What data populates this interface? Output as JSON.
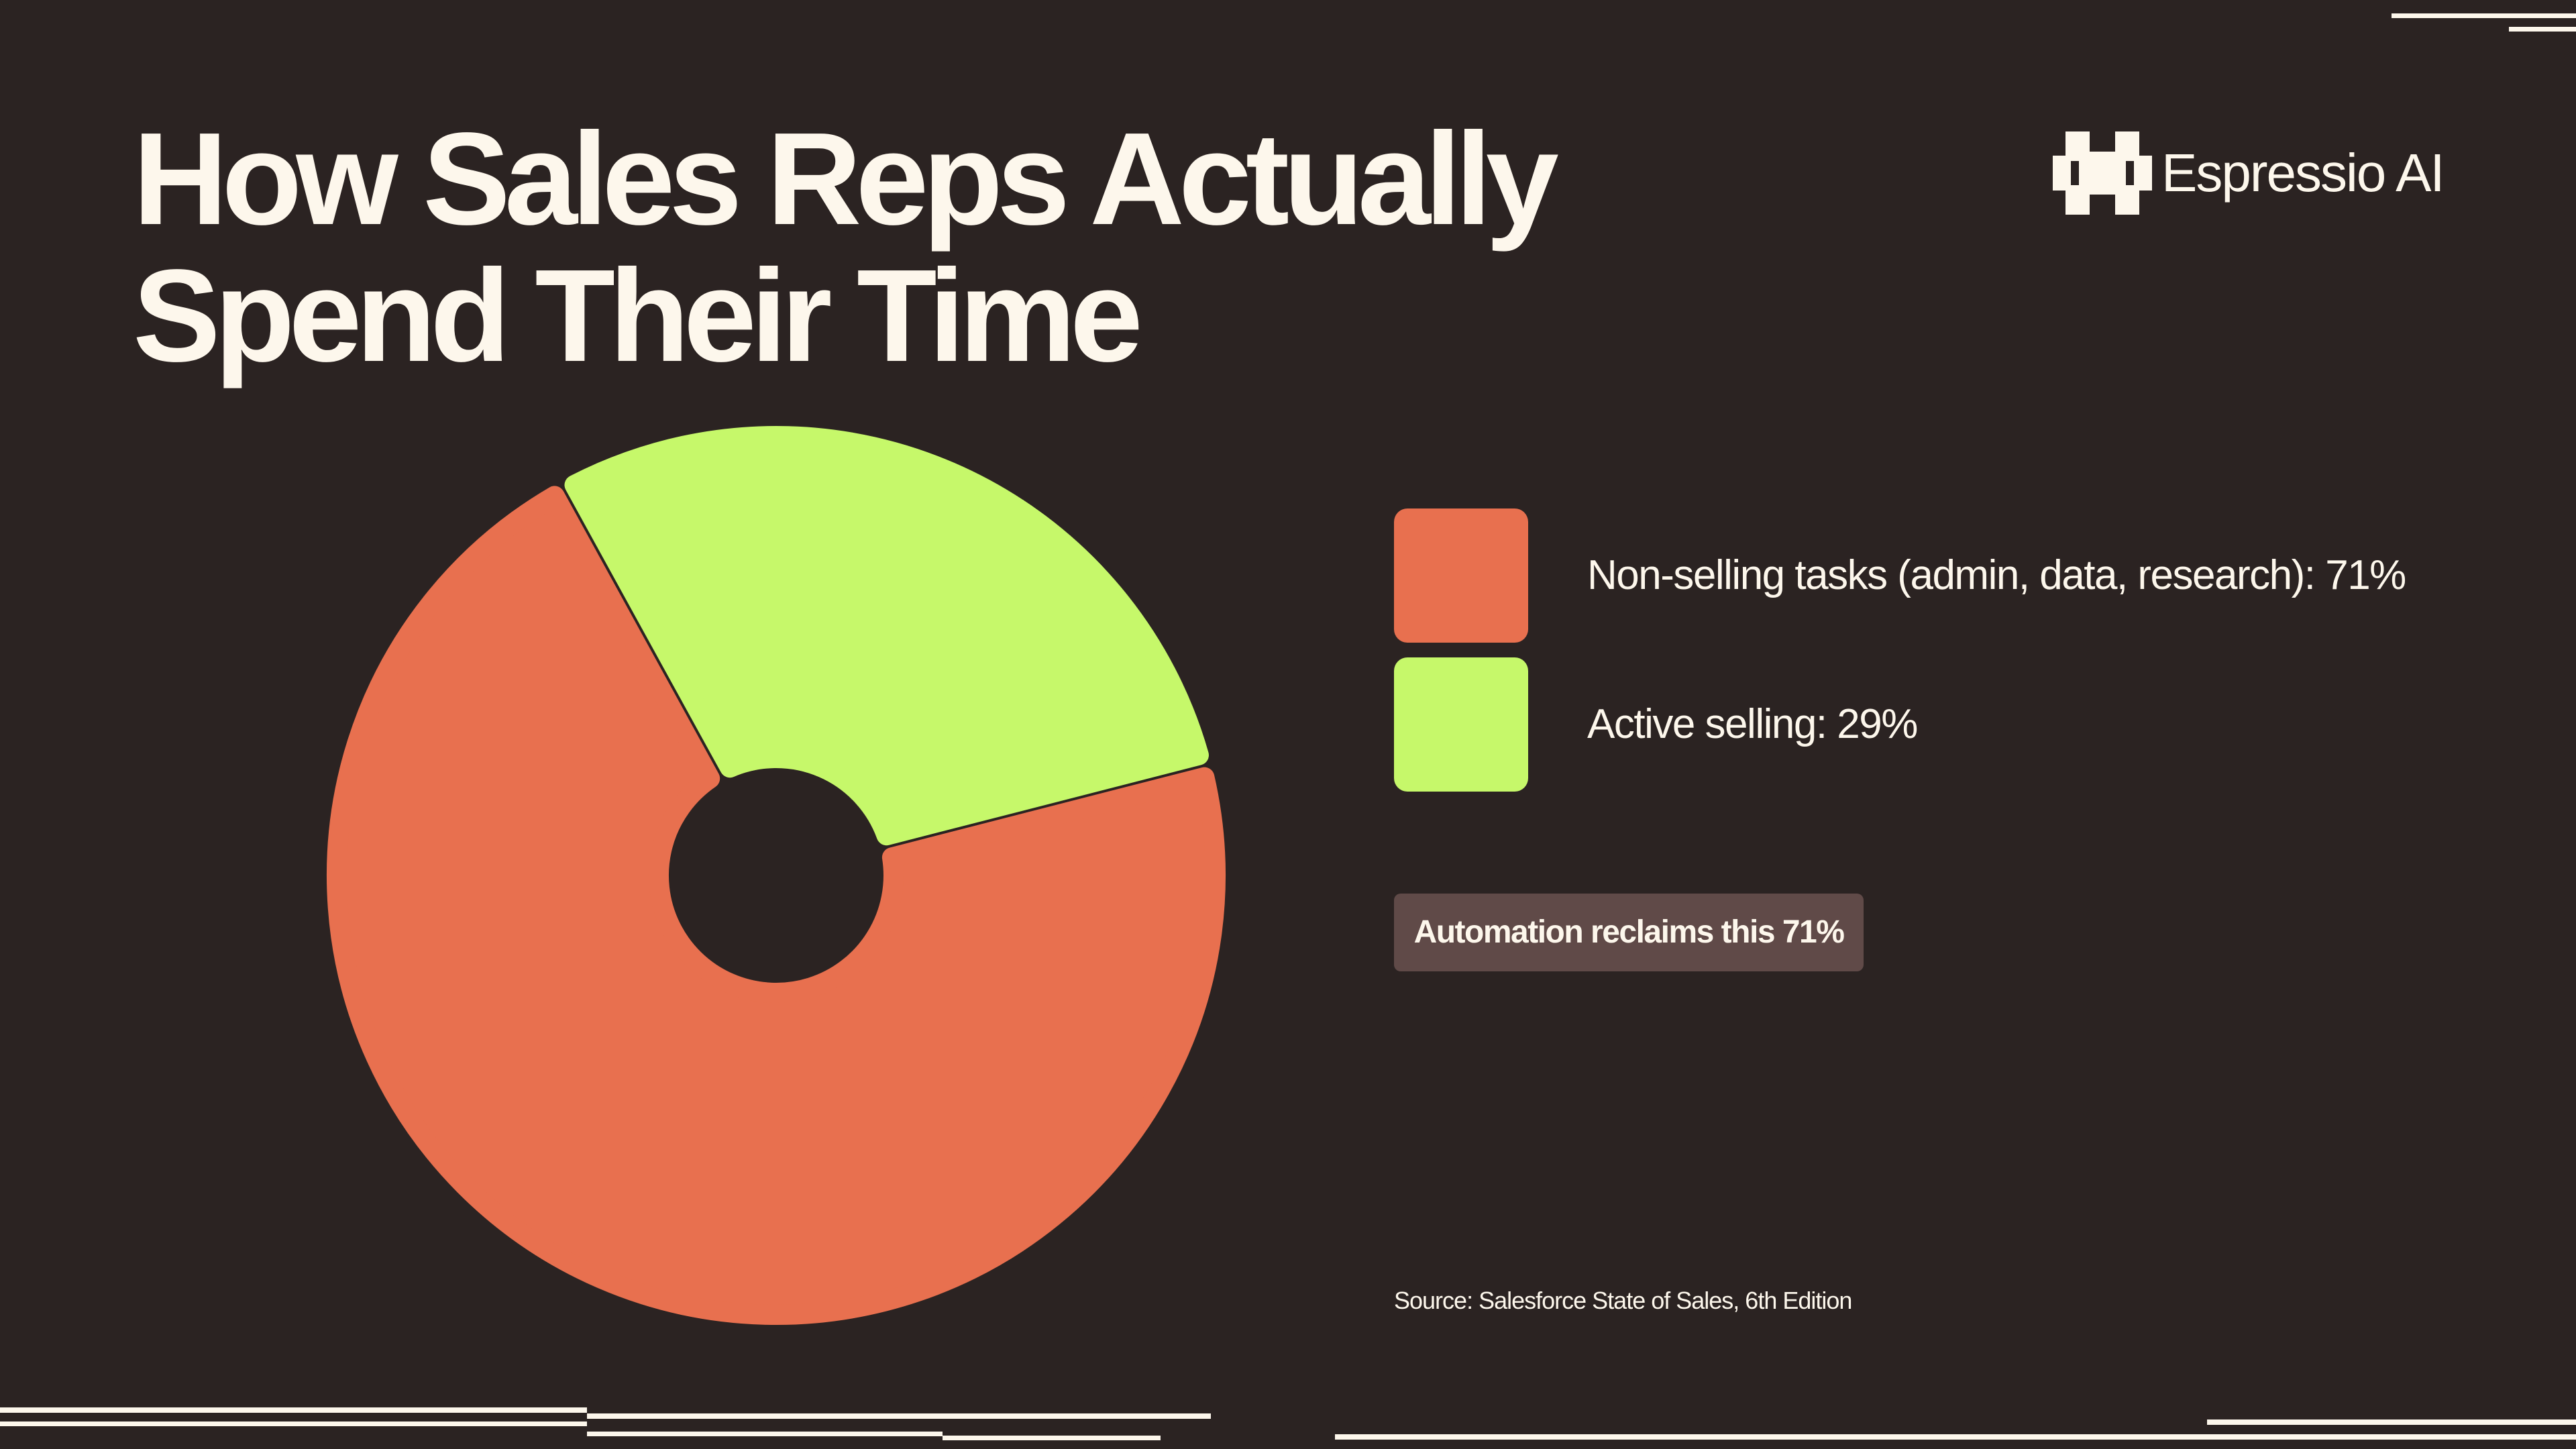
{
  "page": {
    "title_lines": [
      "How Sales Reps Actually",
      "Spend Their Time"
    ],
    "brand": {
      "name": "Espressio AI",
      "icon": "espressio-logo-icon"
    },
    "callout": "Automation reclaims this 71%",
    "source": "Source: Salesforce State of Sales, 6th Edition"
  },
  "chart_data": {
    "type": "pie",
    "style": "donut",
    "title": "How Sales Reps Actually Spend Their Time",
    "categories": [
      "Non-selling tasks (admin, data, research)",
      "Active selling"
    ],
    "values": [
      71,
      29
    ],
    "unit": "%",
    "legend_labels": [
      "Non-selling tasks (admin, data, research): 71%",
      "Active selling: 29%"
    ],
    "colors": [
      "#e8704f",
      "#c6f86a"
    ],
    "legend_position": "right"
  },
  "colors": {
    "background": "#2b2322",
    "text": "#fdf7ec",
    "callout_background": "#604a48"
  }
}
